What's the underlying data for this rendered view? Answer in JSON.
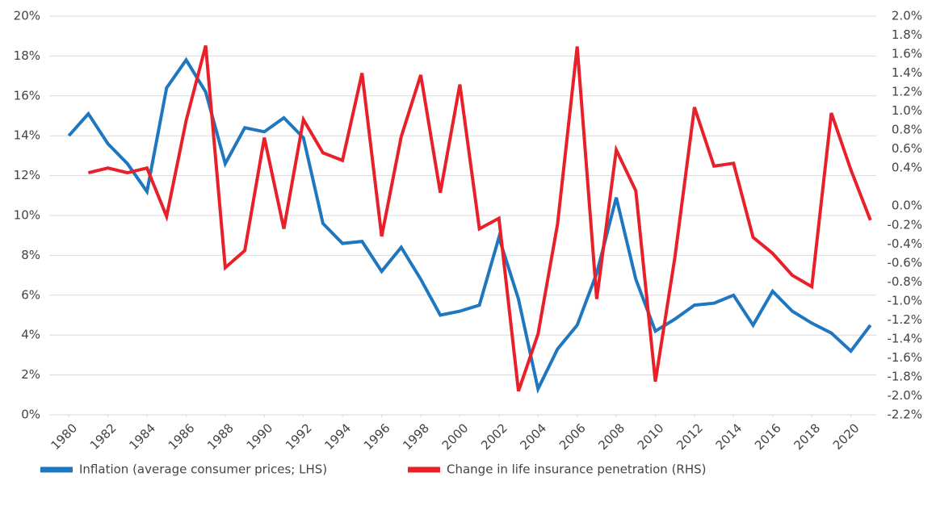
{
  "chart_data": {
    "type": "line",
    "x": [
      1980,
      1981,
      1982,
      1983,
      1984,
      1985,
      1986,
      1987,
      1988,
      1989,
      1990,
      1991,
      1992,
      1993,
      1994,
      1995,
      1996,
      1997,
      1998,
      1999,
      2000,
      2001,
      2002,
      2003,
      2004,
      2005,
      2006,
      2007,
      2008,
      2009,
      2010,
      2011,
      2012,
      2013,
      2014,
      2015,
      2016,
      2017,
      2018,
      2019,
      2020,
      2021
    ],
    "xlim": [
      1979,
      2022
    ],
    "xticks": [
      1980,
      1982,
      1984,
      1986,
      1988,
      1990,
      1992,
      1994,
      1996,
      1998,
      2000,
      2002,
      2004,
      2006,
      2008,
      2010,
      2012,
      2014,
      2016,
      2018,
      2020
    ],
    "ylim": [
      0,
      20
    ],
    "yticks": [
      {
        "value": 0,
        "label": "0%"
      },
      {
        "value": 2,
        "label": "2%"
      },
      {
        "value": 4,
        "label": "4%"
      },
      {
        "value": 6,
        "label": "6%"
      },
      {
        "value": 8,
        "label": "8%"
      },
      {
        "value": 10,
        "label": "10%"
      },
      {
        "value": 12,
        "label": "12%"
      },
      {
        "value": 14,
        "label": "14%"
      },
      {
        "value": 16,
        "label": "16%"
      },
      {
        "value": 18,
        "label": "18%"
      },
      {
        "value": 20,
        "label": "20%"
      }
    ],
    "y2lim": [
      -2.2,
      2.0
    ],
    "y2ticks": [
      {
        "value": 2.0,
        "label": "2.0%"
      },
      {
        "value": 1.8,
        "label": "1.8%"
      },
      {
        "value": 1.6,
        "label": "1.6%"
      },
      {
        "value": 1.4,
        "label": "1.4%"
      },
      {
        "value": 1.2,
        "label": "1.2%"
      },
      {
        "value": 1.0,
        "label": "1.0%"
      },
      {
        "value": 0.8,
        "label": "0.8%"
      },
      {
        "value": 0.6,
        "label": "0.6%"
      },
      {
        "value": 0.4,
        "label": "0.4%"
      },
      {
        "value": 0.0,
        "label": "0.0%"
      },
      {
        "value": -0.2,
        "label": "-0.2%"
      },
      {
        "value": -0.4,
        "label": "-0.4%"
      },
      {
        "value": -0.6,
        "label": "-0.6%"
      },
      {
        "value": -0.8,
        "label": "-0.8%"
      },
      {
        "value": -1.0,
        "label": "-1.0%"
      },
      {
        "value": -1.2,
        "label": "-1.2%"
      },
      {
        "value": -1.4,
        "label": "-1.4%"
      },
      {
        "value": -1.6,
        "label": "-1.6%"
      },
      {
        "value": -1.8,
        "label": "-1.8%"
      },
      {
        "value": -2.0,
        "label": "-2.0%"
      },
      {
        "value": -2.2,
        "label": "-2.2%"
      }
    ],
    "grid": true,
    "legend": "bottom",
    "series": [
      {
        "name": "Inflation (average consumer prices; LHS)",
        "color": "#1f77c0",
        "values": [
          14.0,
          15.1,
          13.6,
          12.6,
          11.2,
          16.4,
          17.8,
          16.2,
          12.6,
          14.4,
          14.2,
          14.9,
          13.9,
          9.6,
          8.6,
          8.7,
          7.2,
          8.4,
          6.8,
          5.0,
          5.2,
          5.5,
          8.9,
          5.8,
          1.3,
          3.3,
          4.5,
          7.1,
          10.9,
          6.8,
          4.2,
          4.8,
          5.5,
          5.6,
          6.0,
          4.5,
          6.2,
          5.2,
          4.6,
          4.1,
          3.2,
          4.5
        ]
      },
      {
        "name": "Change in life insurance penetration (RHS)",
        "color": "#e8202a",
        "axis": "y2",
        "values": [
          null,
          0.35,
          0.4,
          0.35,
          0.4,
          -0.11,
          0.9,
          1.69,
          -0.65,
          -0.47,
          0.72,
          -0.24,
          0.91,
          0.56,
          0.48,
          1.4,
          -0.32,
          0.73,
          1.38,
          0.14,
          1.28,
          -0.24,
          -0.13,
          -1.95,
          -1.35,
          -0.19,
          1.68,
          -0.98,
          0.59,
          0.16,
          -1.85,
          -0.54,
          1.04,
          0.42,
          0.45,
          -0.33,
          -0.5,
          -0.73,
          -0.85,
          0.98,
          0.38,
          -0.15
        ]
      }
    ]
  }
}
